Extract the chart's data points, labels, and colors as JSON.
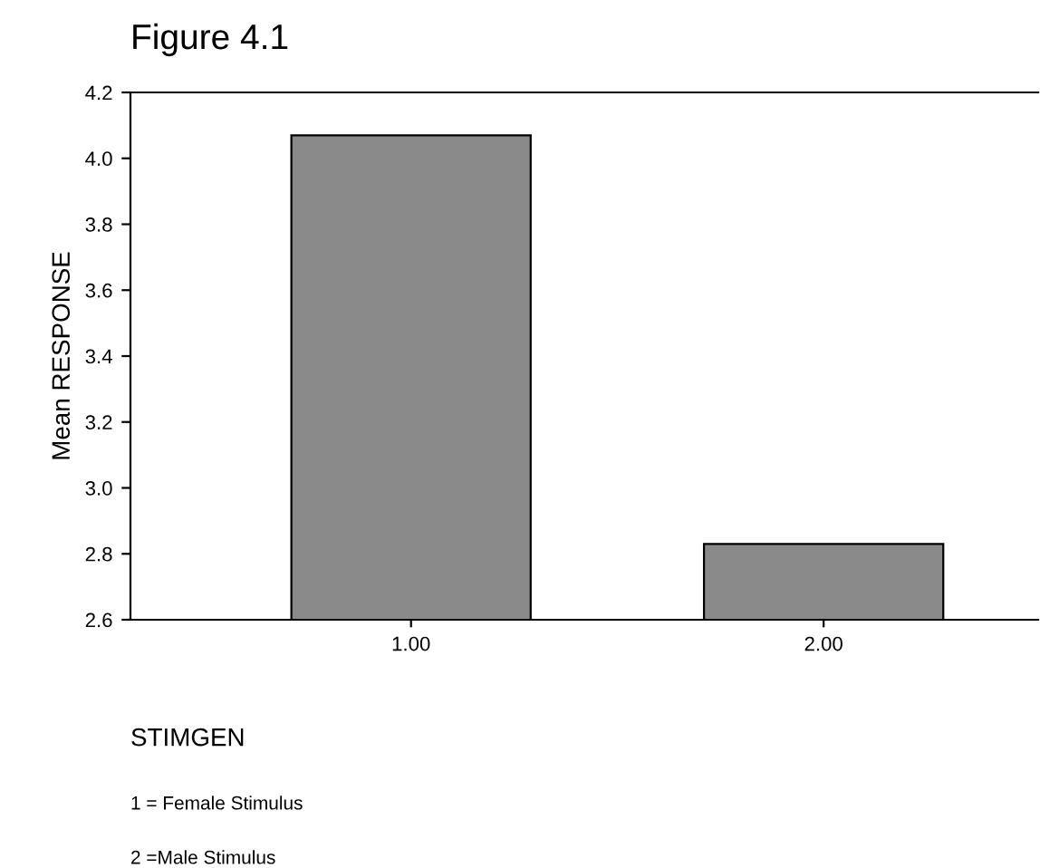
{
  "chart_data": {
    "type": "bar",
    "title": "Figure 4.1",
    "xlabel": "STIMGEN",
    "ylabel": "Mean RESPONSE",
    "categories": [
      "1.00",
      "2.00"
    ],
    "values": [
      4.07,
      2.83
    ],
    "color": "#8a8a8a",
    "ylim": [
      2.6,
      4.2
    ],
    "yticks": [
      {
        "value": 2.6,
        "label": "2.6"
      },
      {
        "value": 2.8,
        "label": "2.8"
      },
      {
        "value": 3.0,
        "label": "3.0"
      },
      {
        "value": 3.2,
        "label": "3.2"
      },
      {
        "value": 3.4,
        "label": "3.4"
      },
      {
        "value": 3.6,
        "label": "3.6"
      },
      {
        "value": 3.8,
        "label": "3.8"
      },
      {
        "value": 4.0,
        "label": "4.0"
      },
      {
        "value": 4.2,
        "label": "4.2"
      }
    ],
    "grid": false,
    "legend": false,
    "annotations": [
      "1 = Female Stimulus",
      "2 =Male Stimulus"
    ]
  }
}
